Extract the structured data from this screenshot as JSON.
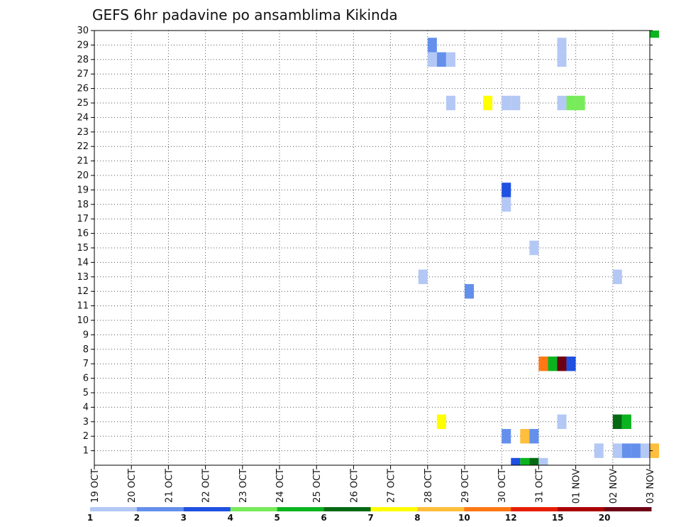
{
  "chart_data": {
    "type": "heatmap",
    "title": "GEFS 6hr padavine po ansamblima Kikinda",
    "xlabel": "",
    "ylabel": "",
    "x_ticks": [
      "19 OCT",
      "20 OCT",
      "21 OCT",
      "22 OCT",
      "23 OCT",
      "24 OCT",
      "25 OCT",
      "26 OCT",
      "27 OCT",
      "28 OCT",
      "29 OCT",
      "30 OCT",
      "31 OCT",
      "01 NOV",
      "02 NOV",
      "03 NOV"
    ],
    "y_ticks": [
      "1",
      "2",
      "3",
      "4",
      "5",
      "6",
      "7",
      "8",
      "9",
      "10",
      "11",
      "12",
      "13",
      "14",
      "15",
      "16",
      "17",
      "18",
      "19",
      "20",
      "21",
      "22",
      "23",
      "24",
      "25",
      "26",
      "27",
      "28",
      "29",
      "30"
    ],
    "ylim": [
      0,
      30
    ],
    "time_step_hours": 6,
    "grid": true,
    "colorbar": {
      "labels": [
        "1",
        "2",
        "3",
        "4",
        "5",
        "6",
        "7",
        "8",
        "10",
        "12",
        "15",
        "20"
      ],
      "colors": [
        "#b4c8f5",
        "#6490ec",
        "#1e50e1",
        "#78eb5a",
        "#0ab41e",
        "#056914",
        "#ffff00",
        "#ffbe3c",
        "#ff7814",
        "#e61e00",
        "#aa0000",
        "#6e0014"
      ]
    },
    "cells": [
      {
        "member": 0,
        "time": "30 OCT 06Z",
        "value": 3
      },
      {
        "member": 0,
        "time": "30 OCT 12Z",
        "value": 5
      },
      {
        "member": 0,
        "time": "30 OCT 18Z",
        "value": 6
      },
      {
        "member": 0,
        "time": "31 OCT 00Z",
        "value": 1
      },
      {
        "member": 1,
        "time": "01 NOV 12Z",
        "value": 1
      },
      {
        "member": 1,
        "time": "02 NOV 00Z",
        "value": 1
      },
      {
        "member": 1,
        "time": "02 NOV 06Z",
        "value": 2
      },
      {
        "member": 1,
        "time": "02 NOV 12Z",
        "value": 2
      },
      {
        "member": 1,
        "time": "02 NOV 18Z",
        "value": 1
      },
      {
        "member": 1,
        "time": "03 NOV 00Z",
        "value": 8
      },
      {
        "member": 2,
        "time": "30 OCT 00Z",
        "value": 2
      },
      {
        "member": 2,
        "time": "30 OCT 12Z",
        "value": 8
      },
      {
        "member": 2,
        "time": "30 OCT 18Z",
        "value": 2
      },
      {
        "member": 3,
        "time": "28 OCT 06Z",
        "value": 7
      },
      {
        "member": 3,
        "time": "31 OCT 12Z",
        "value": 1
      },
      {
        "member": 3,
        "time": "02 NOV 00Z",
        "value": 6
      },
      {
        "member": 3,
        "time": "02 NOV 06Z",
        "value": 5
      },
      {
        "member": 7,
        "time": "31 OCT 00Z",
        "value": 10
      },
      {
        "member": 7,
        "time": "31 OCT 06Z",
        "value": 5
      },
      {
        "member": 7,
        "time": "31 OCT 12Z",
        "value": 20
      },
      {
        "member": 7,
        "time": "31 OCT 18Z",
        "value": 3
      },
      {
        "member": 12,
        "time": "29 OCT 00Z",
        "value": 2
      },
      {
        "member": 13,
        "time": "27 OCT 18Z",
        "value": 1
      },
      {
        "member": 13,
        "time": "02 NOV 00Z",
        "value": 1
      },
      {
        "member": 15,
        "time": "30 OCT 18Z",
        "value": 1
      },
      {
        "member": 18,
        "time": "30 OCT 00Z",
        "value": 1
      },
      {
        "member": 19,
        "time": "30 OCT 00Z",
        "value": 3
      },
      {
        "member": 25,
        "time": "28 OCT 12Z",
        "value": 1
      },
      {
        "member": 25,
        "time": "29 OCT 12Z",
        "value": 7
      },
      {
        "member": 25,
        "time": "30 OCT 00Z",
        "value": 1
      },
      {
        "member": 25,
        "time": "30 OCT 06Z",
        "value": 1
      },
      {
        "member": 25,
        "time": "31 OCT 12Z",
        "value": 1
      },
      {
        "member": 25,
        "time": "31 OCT 18Z",
        "value": 4
      },
      {
        "member": 25,
        "time": "01 NOV 00Z",
        "value": 4
      },
      {
        "member": 28,
        "time": "28 OCT 00Z",
        "value": 1
      },
      {
        "member": 28,
        "time": "28 OCT 06Z",
        "value": 2
      },
      {
        "member": 28,
        "time": "28 OCT 12Z",
        "value": 1
      },
      {
        "member": 28,
        "time": "31 OCT 12Z",
        "value": 1
      },
      {
        "member": 29,
        "time": "28 OCT 00Z",
        "value": 2
      },
      {
        "member": 29,
        "time": "31 OCT 12Z",
        "value": 1
      },
      {
        "member": 30,
        "time": "03 NOV 00Z",
        "value": 5
      }
    ]
  }
}
